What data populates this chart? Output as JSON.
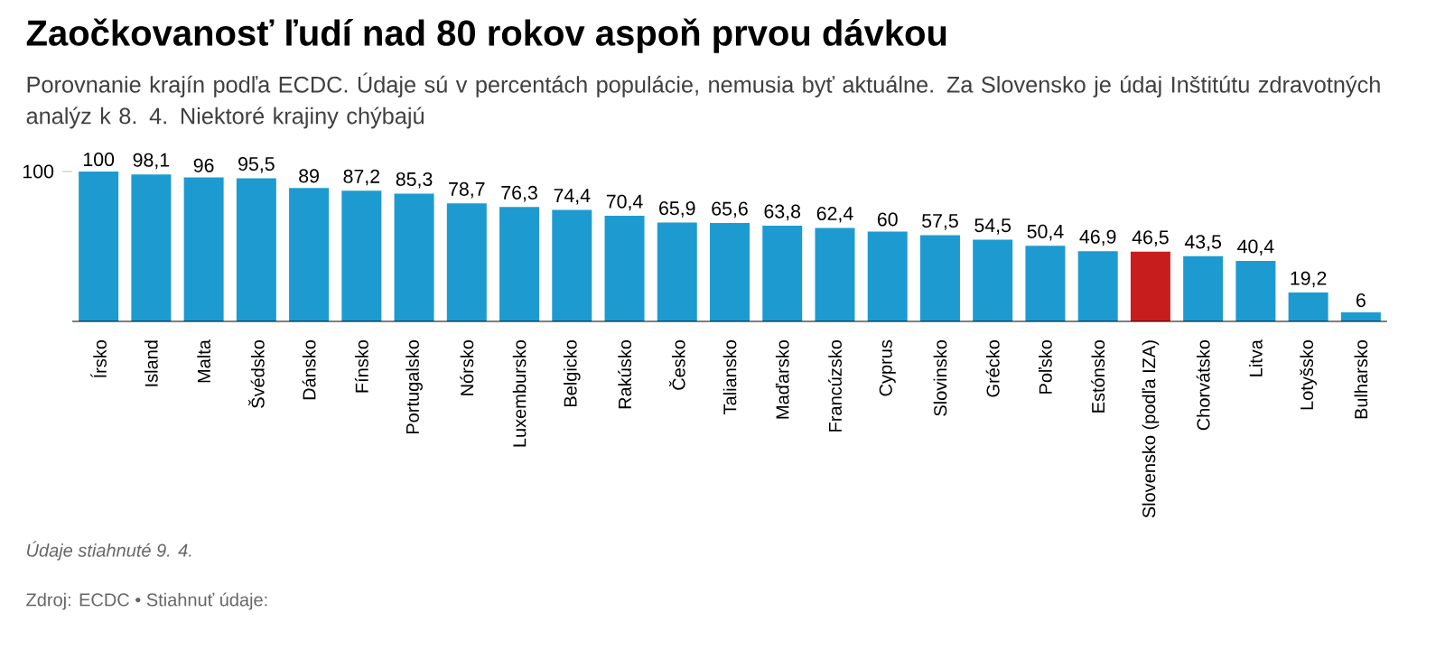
{
  "chart_data": {
    "type": "bar",
    "title": "Zaočkovanosť ľudí nad 80 rokov aspoň prvou dávkou",
    "subtitle": "Porovnanie krajín podľa ECDC. Údaje sú v percentách populácie, nemusia byť aktuálne. Za Slovensko je údaj Inštitútu zdravotných analýz k 8. 4. Niektoré krajiny chýbajú",
    "categories": [
      "Írsko",
      "Island",
      "Malta",
      "Švédsko",
      "Dánsko",
      "Fínsko",
      "Portugalsko",
      "Nórsko",
      "Luxembursko",
      "Belgicko",
      "Rakúsko",
      "Česko",
      "Taliansko",
      "Maďarsko",
      "Francúzsko",
      "Cyprus",
      "Slovinsko",
      "Grécko",
      "Poľsko",
      "Estónsko",
      "Slovensko (podľa IZA)",
      "Chorvátsko",
      "Litva",
      "Lotyšsko",
      "Bulharsko"
    ],
    "values": [
      100,
      98.1,
      96,
      95.5,
      89,
      87.2,
      85.3,
      78.7,
      76.3,
      74.4,
      70.4,
      65.9,
      65.6,
      63.8,
      62.4,
      60,
      57.5,
      54.5,
      50.4,
      46.9,
      46.5,
      43.5,
      40.4,
      19.2,
      6
    ],
    "value_labels": [
      "100",
      "98,1",
      "96",
      "95,5",
      "89",
      "87,2",
      "85,3",
      "78,7",
      "76,3",
      "74,4",
      "70,4",
      "65,9",
      "65,6",
      "63,8",
      "62,4",
      "60",
      "57,5",
      "54,5",
      "50,4",
      "46,9",
      "46,5",
      "43,5",
      "40,4",
      "19,2",
      "6"
    ],
    "colors": [
      "#1d9bd1",
      "#1d9bd1",
      "#1d9bd1",
      "#1d9bd1",
      "#1d9bd1",
      "#1d9bd1",
      "#1d9bd1",
      "#1d9bd1",
      "#1d9bd1",
      "#1d9bd1",
      "#1d9bd1",
      "#1d9bd1",
      "#1d9bd1",
      "#1d9bd1",
      "#1d9bd1",
      "#1d9bd1",
      "#1d9bd1",
      "#1d9bd1",
      "#1d9bd1",
      "#1d9bd1",
      "#c71e1d",
      "#1d9bd1",
      "#1d9bd1",
      "#1d9bd1",
      "#1d9bd1"
    ],
    "ylim": [
      0,
      100
    ],
    "yticks": [
      100
    ],
    "annotations": [
      "*Údaje stiahnuté 9. 4.*",
      "Zdroj: ECDC • Stiahnuť údaje:"
    ]
  }
}
